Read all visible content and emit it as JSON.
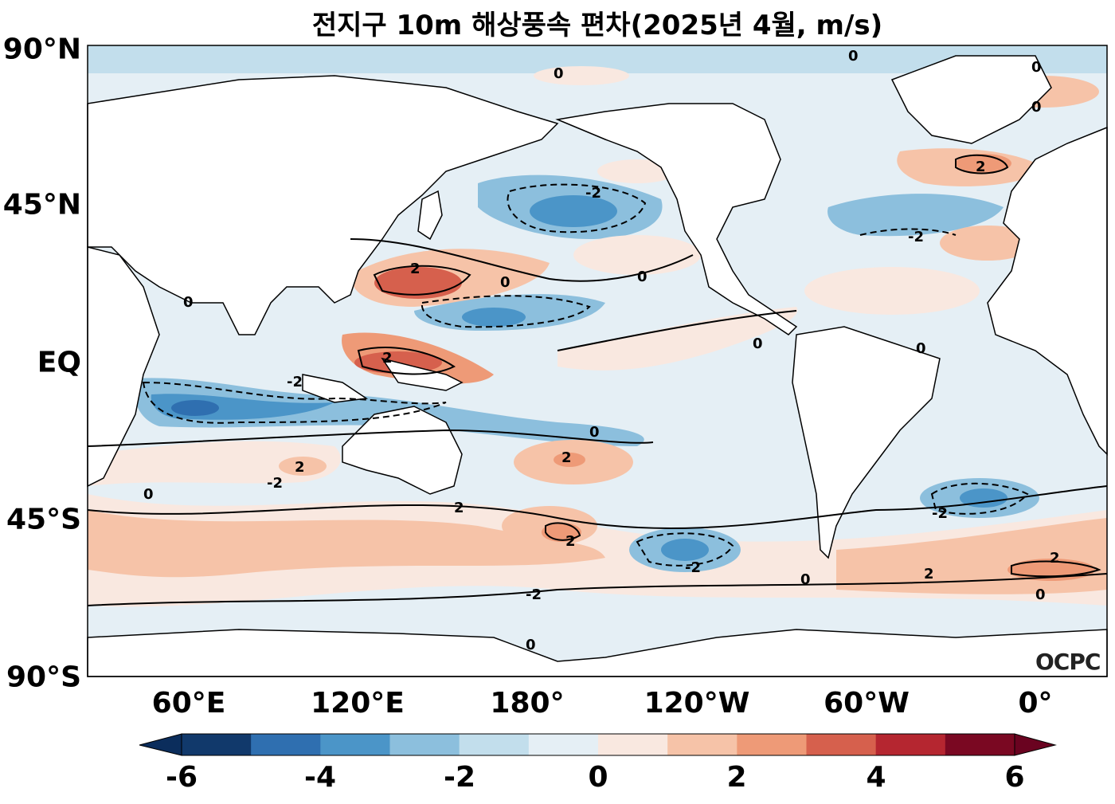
{
  "title": "전지구 10m 해상풍속 편차(2025년 4월, m/s)",
  "y_axis_labels": [
    "90°N",
    "45°N",
    "EQ",
    "45°S",
    "90°S"
  ],
  "x_axis_labels": [
    "60°E",
    "120°E",
    "180°",
    "120°W",
    "60°W",
    "0°"
  ],
  "colorbar": {
    "ticks": [
      "-6",
      "-4",
      "-2",
      "0",
      "2",
      "4",
      "6"
    ],
    "levels": [
      -6,
      -5,
      -4,
      -3,
      -2,
      -1,
      0,
      1,
      2,
      3,
      4,
      5,
      6
    ],
    "colors": [
      "#11396b",
      "#2f6fb0",
      "#4b95c8",
      "#8cbfdd",
      "#c2deec",
      "#e5eff5",
      "#f9e8e0",
      "#f6c3a8",
      "#ee9a77",
      "#d6604d",
      "#b52630",
      "#7a0822"
    ]
  },
  "logo_text": "OCPC",
  "contour_labels": [
    "0",
    "2",
    "-2"
  ]
}
